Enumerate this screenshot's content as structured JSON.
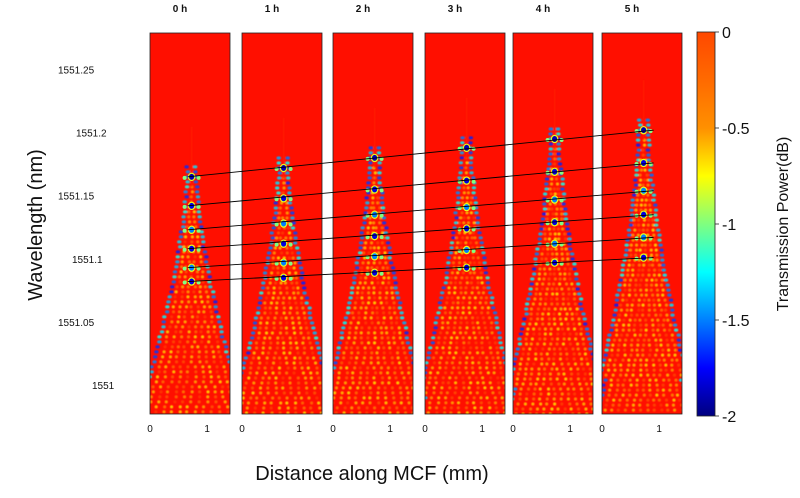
{
  "chart_data": {
    "type": "heatmap",
    "title": "",
    "xlabel": "Distance along MCF (mm)",
    "ylabel": "Wavelength (nm)",
    "panels": [
      {
        "title": "0 h",
        "x_ticks": [
          "0",
          "1"
        ],
        "peak_wavelengths_nm": [
          1551.165,
          1551.142,
          1551.123,
          1551.108,
          1551.093,
          1551.082
        ]
      },
      {
        "title": "1 h",
        "x_ticks": [
          "0",
          "1"
        ],
        "peak_wavelengths_nm": [
          1551.172,
          1551.148,
          1551.128,
          1551.112,
          1551.097,
          1551.085
        ]
      },
      {
        "title": "2 h",
        "x_ticks": [
          "0",
          "1"
        ],
        "peak_wavelengths_nm": [
          1551.18,
          1551.155,
          1551.135,
          1551.118,
          1551.102,
          1551.089
        ]
      },
      {
        "title": "3 h",
        "x_ticks": [
          "0",
          "1"
        ],
        "peak_wavelengths_nm": [
          1551.188,
          1551.162,
          1551.141,
          1551.124,
          1551.107,
          1551.093
        ]
      },
      {
        "title": "4 h",
        "x_ticks": [
          "0",
          "1"
        ],
        "peak_wavelengths_nm": [
          1551.195,
          1551.169,
          1551.147,
          1551.129,
          1551.112,
          1551.097
        ]
      },
      {
        "title": "5 h",
        "x_ticks": [
          "0",
          "1"
        ],
        "peak_wavelengths_nm": [
          1551.202,
          1551.176,
          1551.154,
          1551.135,
          1551.117,
          1551.101
        ]
      }
    ],
    "xlim_mm": [
      0,
      1.4
    ],
    "y_ticks": [
      "1551.25",
      "1551.2",
      "1551.15",
      "1551.1",
      "1551.05",
      "1551"
    ],
    "ylim_nm": [
      1550.977,
      1551.279
    ],
    "colorbar": {
      "label": "Transmission Power(dB)",
      "ticks": [
        "0",
        "-0.5",
        "-1",
        "-1.5",
        "-2"
      ],
      "range": [
        -2,
        0
      ],
      "colormap": "jet"
    },
    "trend_lines": 6,
    "colors": {
      "background_level": "#ff6a00",
      "trend_line": "#000000"
    }
  }
}
